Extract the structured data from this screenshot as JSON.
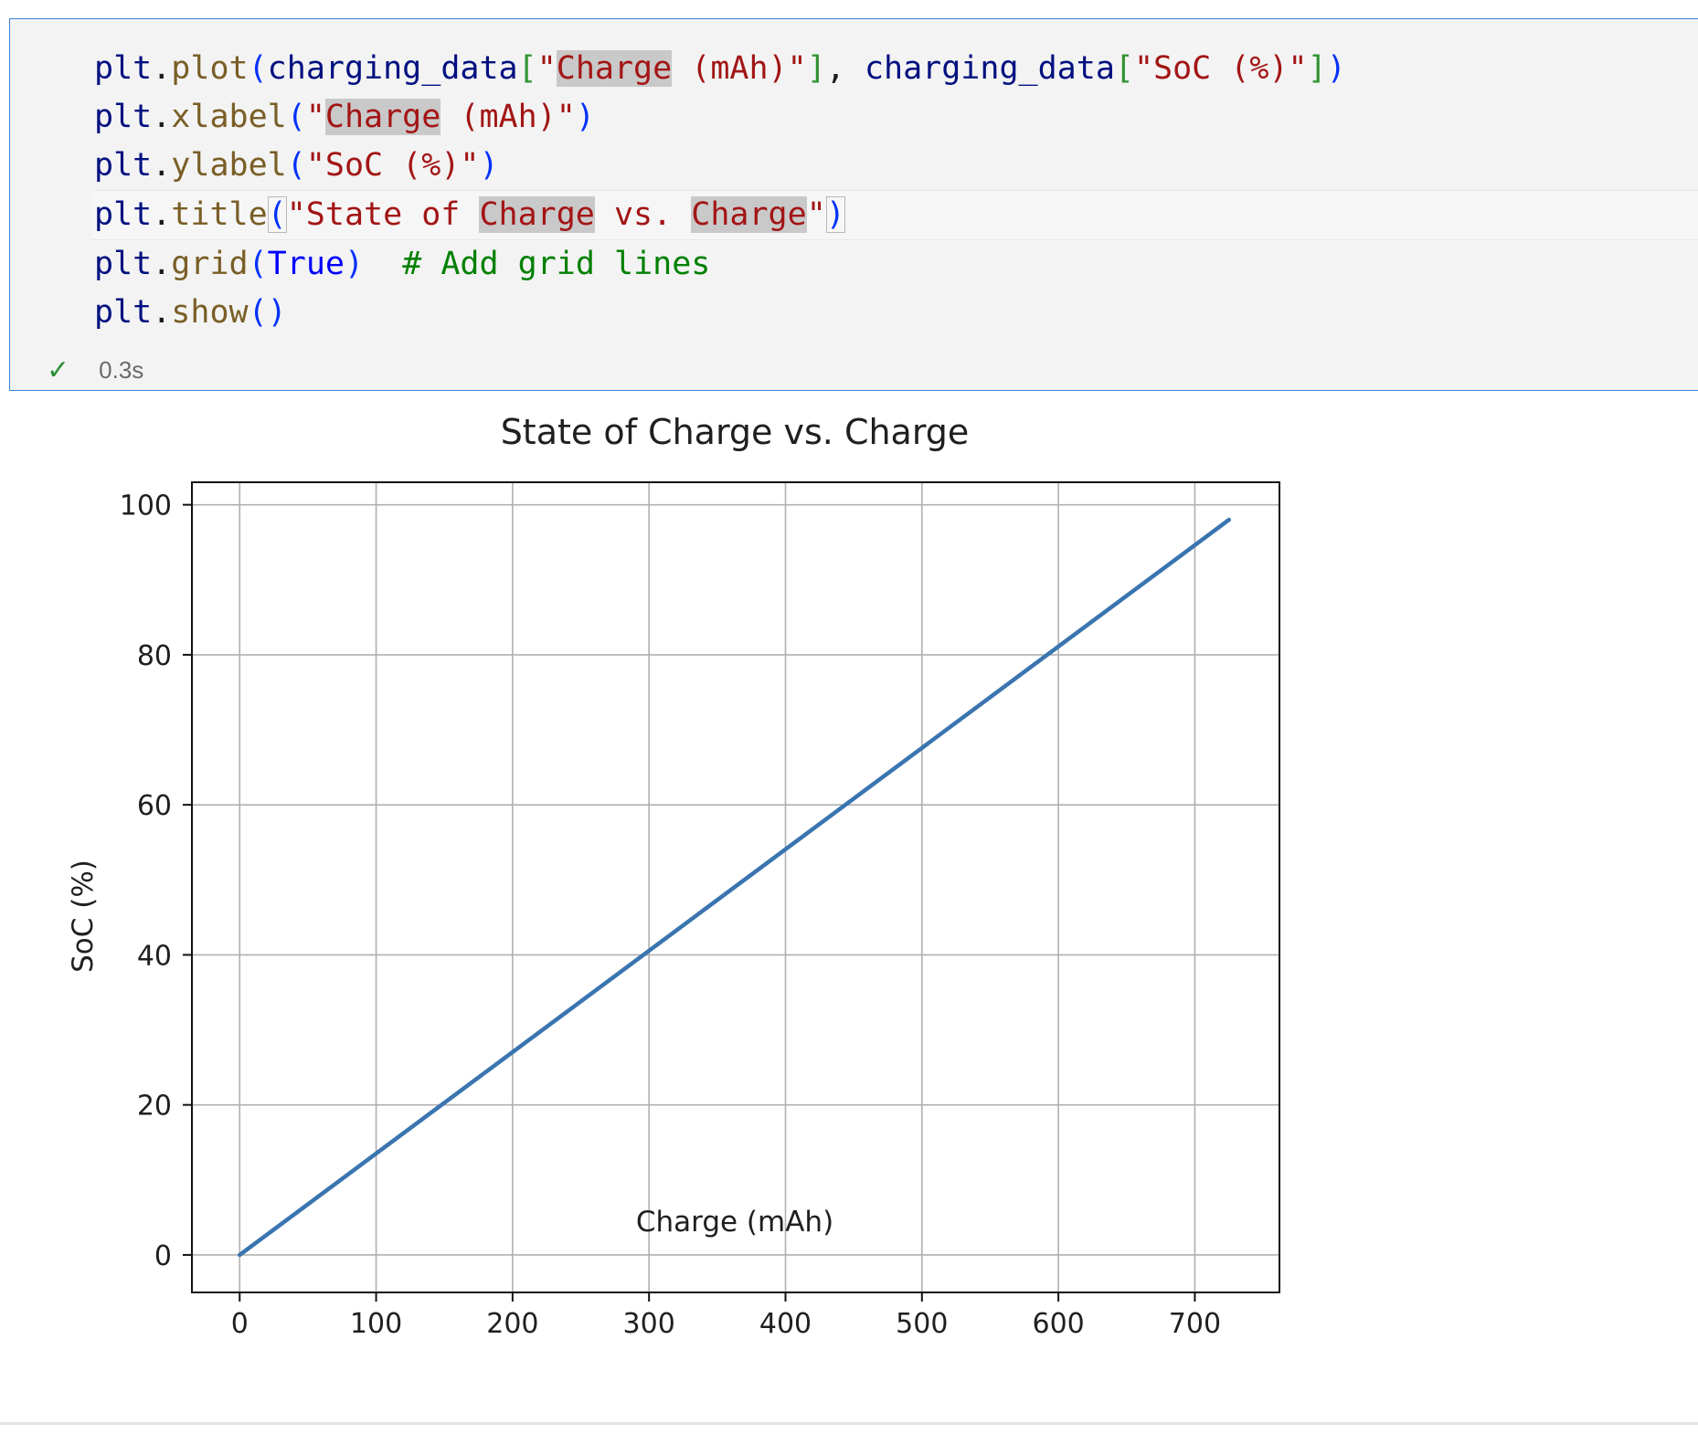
{
  "cell": {
    "code_lines": [
      "plt.plot(charging_data[\"Charge (mAh)\"], charging_data[\"SoC (%)\"])",
      "plt.xlabel(\"Charge (mAh)\")",
      "plt.ylabel(\"SoC (%)\")",
      "plt.title(\"State of Charge vs. Charge\")",
      "plt.grid(True)  # Add grid lines",
      "plt.show()"
    ],
    "status": {
      "icon": "check-icon",
      "duration": "0.3s"
    }
  },
  "chart_data": {
    "type": "line",
    "title": "State of Charge vs. Charge",
    "xlabel": "Charge (mAh)",
    "ylabel": "SoC (%)",
    "xlim": [
      -35,
      762
    ],
    "ylim": [
      -5,
      103
    ],
    "xticks": [
      0,
      100,
      200,
      300,
      400,
      500,
      600,
      700
    ],
    "yticks": [
      0,
      20,
      40,
      60,
      80,
      100
    ],
    "grid": true,
    "series": [
      {
        "color": "#3a75b0",
        "x": [
          0,
          725
        ],
        "y": [
          0,
          98
        ]
      }
    ]
  }
}
